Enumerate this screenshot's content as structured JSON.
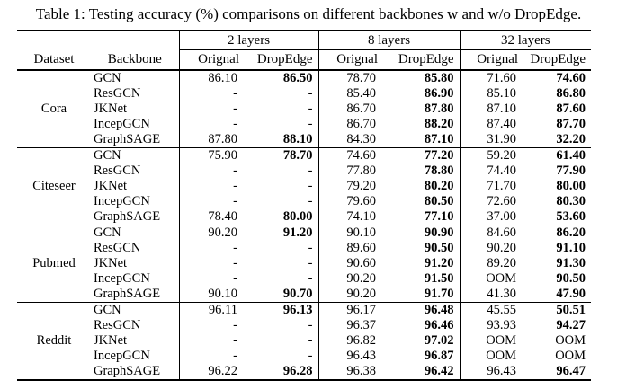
{
  "caption": "Table 1: Testing accuracy (%) comparisons on different backbones w and w/o DropEdge.",
  "colors": {
    "text": "#000000",
    "background": "#ffffff",
    "rule": "#000000"
  },
  "table": {
    "layer_groups": [
      "2 layers",
      "8 layers",
      "32 layers"
    ],
    "col_headers": {
      "dataset": "Dataset",
      "backbone": "Backbone",
      "orignal": "Orignal",
      "dropedge": "DropEdge"
    },
    "groups": [
      {
        "dataset": "Cora",
        "rows": [
          {
            "backbone": "GCN",
            "values": [
              "86.10",
              "86.50",
              "78.70",
              "85.80",
              "71.60",
              "74.60"
            ]
          },
          {
            "backbone": "ResGCN",
            "values": [
              "-",
              "-",
              "85.40",
              "86.90",
              "85.10",
              "86.80"
            ]
          },
          {
            "backbone": "JKNet",
            "values": [
              "-",
              "-",
              "86.70",
              "87.80",
              "87.10",
              "87.60"
            ]
          },
          {
            "backbone": "IncepGCN",
            "values": [
              "-",
              "-",
              "86.70",
              "88.20",
              "87.40",
              "87.70"
            ]
          },
          {
            "backbone": "GraphSAGE",
            "values": [
              "87.80",
              "88.10",
              "84.30",
              "87.10",
              "31.90",
              "32.20"
            ]
          }
        ]
      },
      {
        "dataset": "Citeseer",
        "rows": [
          {
            "backbone": "GCN",
            "values": [
              "75.90",
              "78.70",
              "74.60",
              "77.20",
              "59.20",
              "61.40"
            ]
          },
          {
            "backbone": "ResGCN",
            "values": [
              "-",
              "-",
              "77.80",
              "78.80",
              "74.40",
              "77.90"
            ]
          },
          {
            "backbone": "JKNet",
            "values": [
              "-",
              "-",
              "79.20",
              "80.20",
              "71.70",
              "80.00"
            ]
          },
          {
            "backbone": "IncepGCN",
            "values": [
              "-",
              "-",
              "79.60",
              "80.50",
              "72.60",
              "80.30"
            ]
          },
          {
            "backbone": "GraphSAGE",
            "values": [
              "78.40",
              "80.00",
              "74.10",
              "77.10",
              "37.00",
              "53.60"
            ]
          }
        ]
      },
      {
        "dataset": "Pubmed",
        "rows": [
          {
            "backbone": "GCN",
            "values": [
              "90.20",
              "91.20",
              "90.10",
              "90.90",
              "84.60",
              "86.20"
            ]
          },
          {
            "backbone": "ResGCN",
            "values": [
              "-",
              "-",
              "89.60",
              "90.50",
              "90.20",
              "91.10"
            ]
          },
          {
            "backbone": "JKNet",
            "values": [
              "-",
              "-",
              "90.60",
              "91.20",
              "89.20",
              "91.30"
            ]
          },
          {
            "backbone": "IncepGCN",
            "values": [
              "-",
              "-",
              "90.20",
              "91.50",
              "OOM",
              "90.50"
            ]
          },
          {
            "backbone": "GraphSAGE",
            "values": [
              "90.10",
              "90.70",
              "90.20",
              "91.70",
              "41.30",
              "47.90"
            ]
          }
        ]
      },
      {
        "dataset": "Reddit",
        "rows": [
          {
            "backbone": "GCN",
            "values": [
              "96.11",
              "96.13",
              "96.17",
              "96.48",
              "45.55",
              "50.51"
            ]
          },
          {
            "backbone": "ResGCN",
            "values": [
              "-",
              "-",
              "96.37",
              "96.46",
              "93.93",
              "94.27"
            ]
          },
          {
            "backbone": "JKNet",
            "values": [
              "-",
              "-",
              "96.82",
              "97.02",
              "OOM",
              "OOM"
            ]
          },
          {
            "backbone": "IncepGCN",
            "values": [
              "-",
              "-",
              "96.43",
              "96.87",
              "OOM",
              "OOM"
            ]
          },
          {
            "backbone": "GraphSAGE",
            "values": [
              "96.22",
              "96.28",
              "96.38",
              "96.42",
              "96.43",
              "96.47"
            ]
          }
        ]
      }
    ]
  }
}
